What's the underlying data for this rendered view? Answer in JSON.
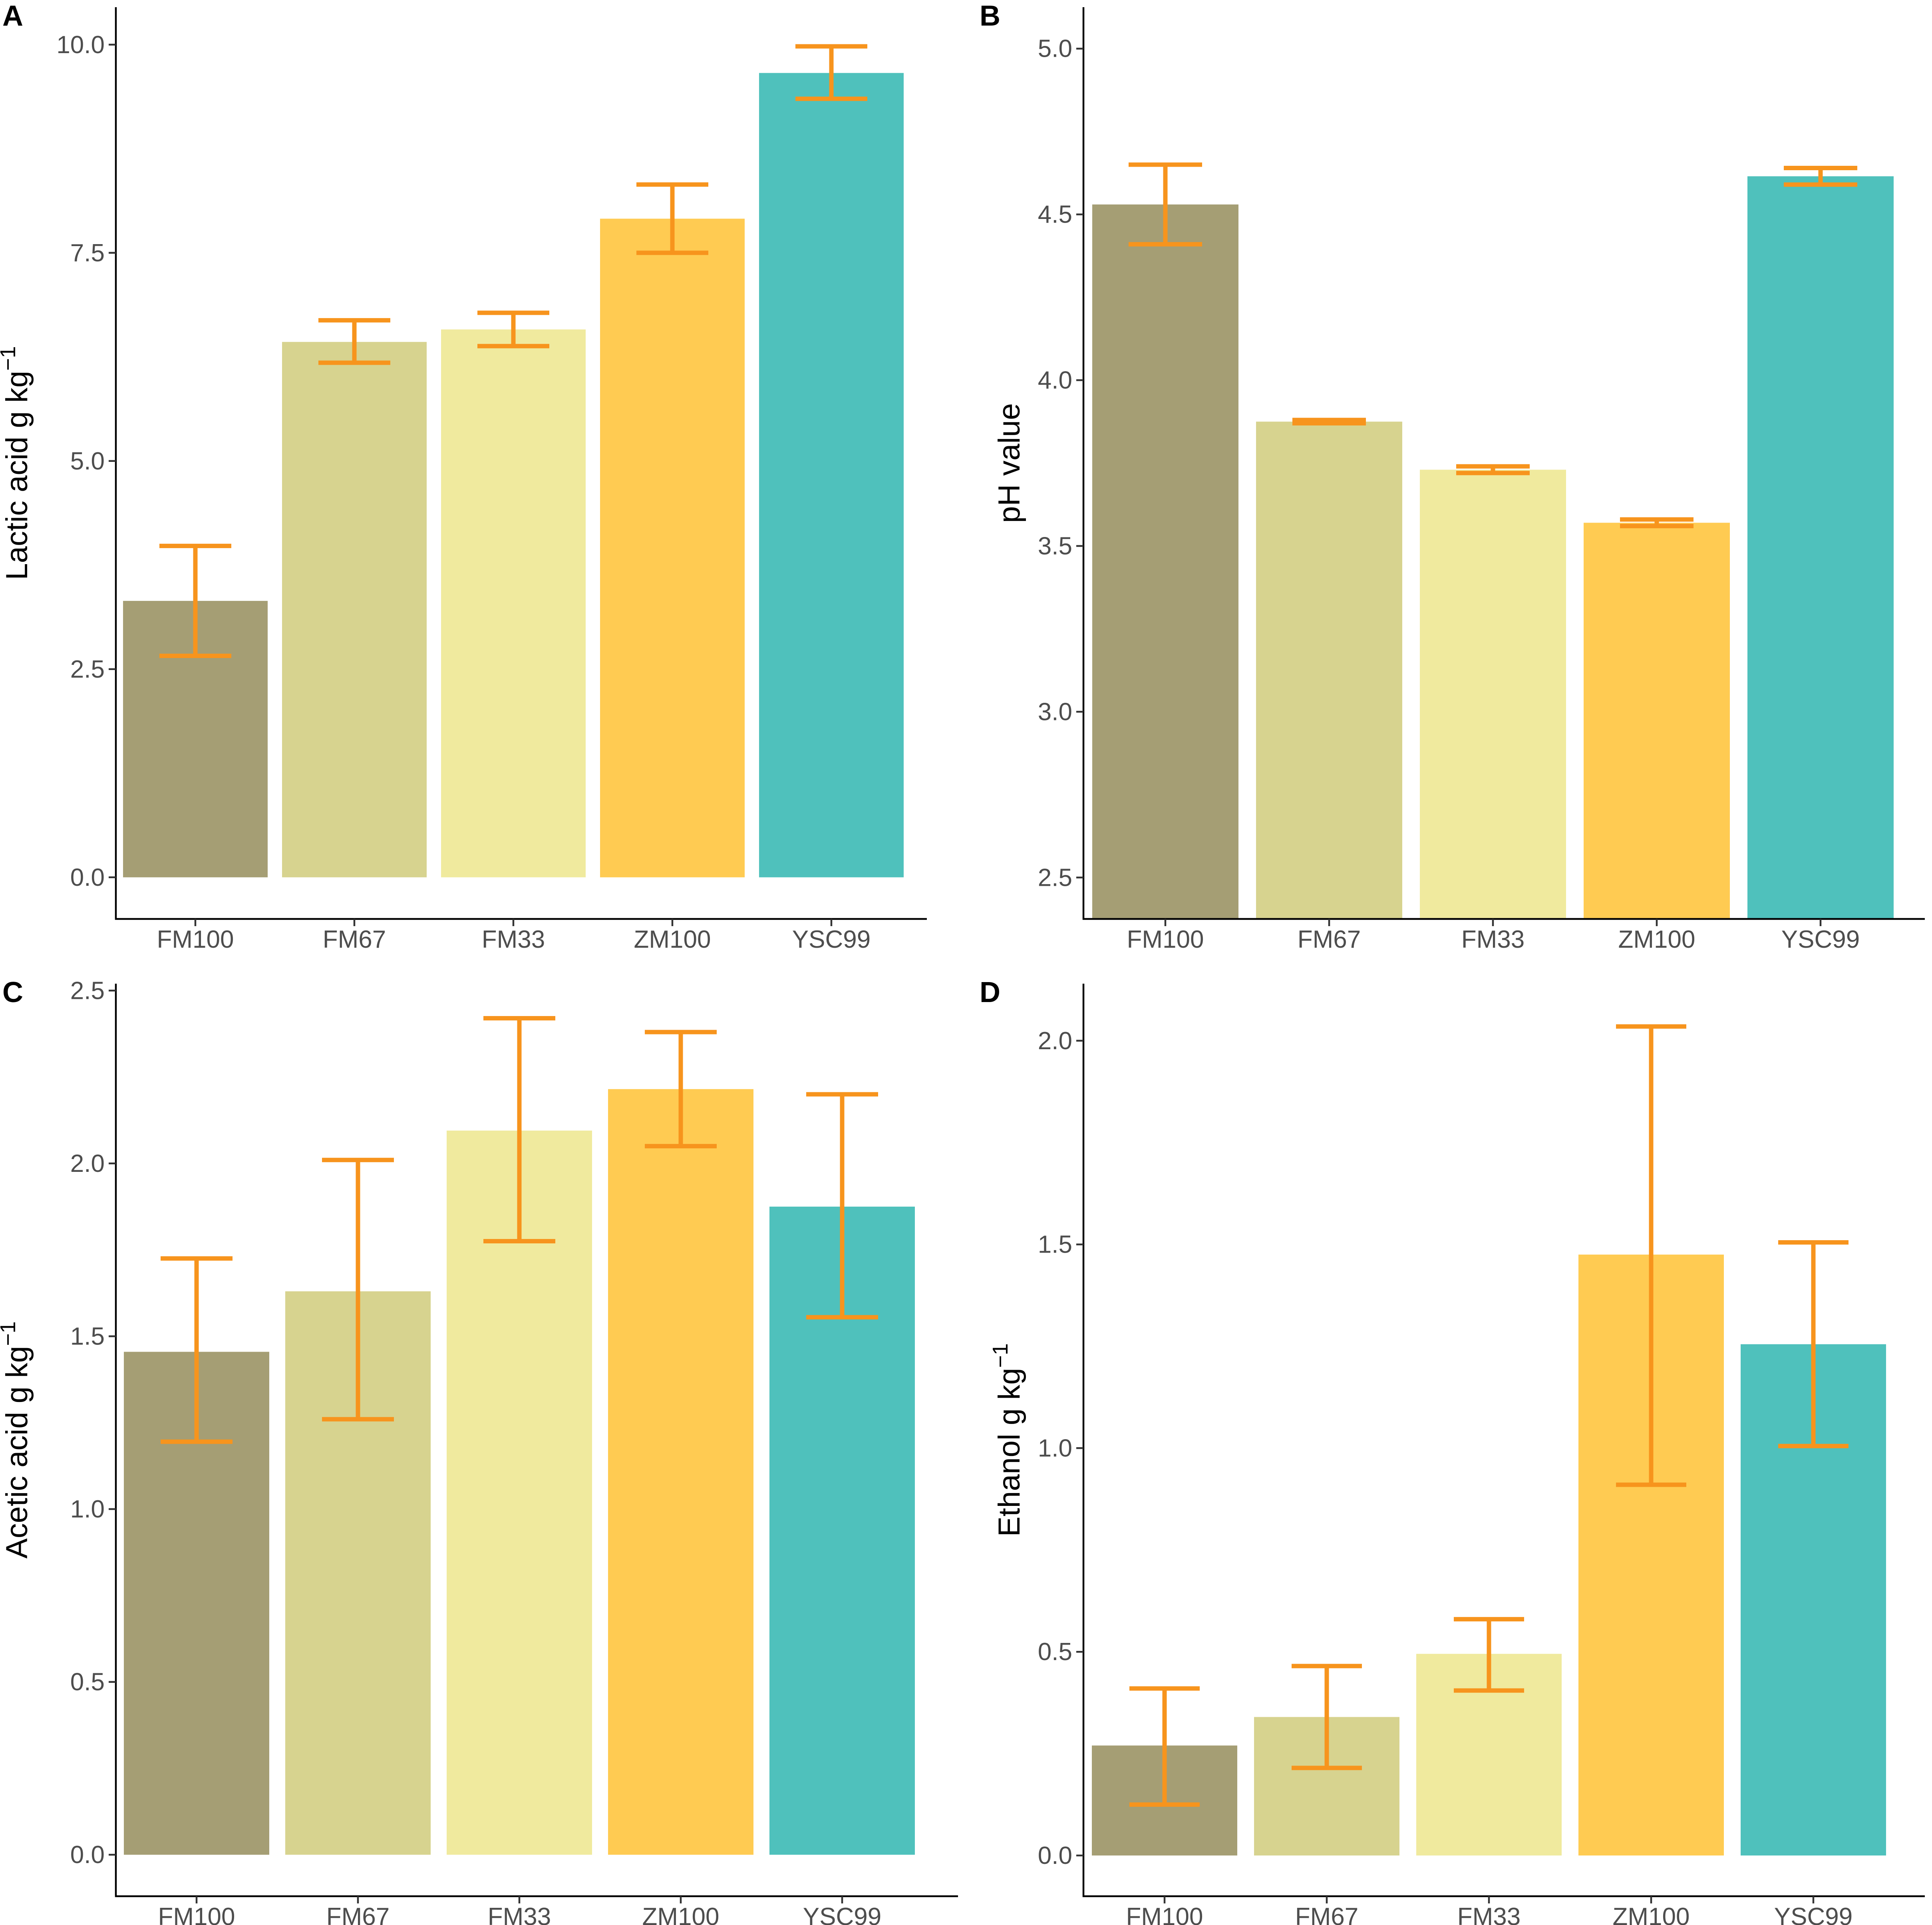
{
  "colors": {
    "FM100": "#A59E74",
    "FM67": "#D7D38F",
    "FM33": "#F0EA9E",
    "ZM100": "#FFCB52",
    "YSC99": "#4FC1BC",
    "error": "#F7941D"
  },
  "chart_data": [
    {
      "panel": "A",
      "type": "bar",
      "categories": [
        "FM100",
        "FM67",
        "FM33",
        "ZM100",
        "YSC99"
      ],
      "values": [
        3.32,
        6.43,
        6.58,
        7.91,
        9.66
      ],
      "err_low": [
        2.66,
        6.18,
        6.38,
        7.5,
        9.35
      ],
      "err_high": [
        3.98,
        6.69,
        6.78,
        8.32,
        9.98
      ],
      "ylabel_main": "Lactic acid g  kg",
      "ylabel_sup": "−1",
      "ylim": [
        -0.5,
        10.45
      ],
      "yticks": [
        0.0,
        2.5,
        5.0,
        7.5,
        10.0
      ],
      "ytick_labels": [
        "0.0",
        "2.5",
        "5.0",
        "7.5",
        "10.0"
      ],
      "bar_base": 0
    },
    {
      "panel": "B",
      "type": "bar",
      "categories": [
        "FM100",
        "FM67",
        "FM33",
        "ZM100",
        "YSC99"
      ],
      "values": [
        4.53,
        3.875,
        3.73,
        3.57,
        4.615
      ],
      "err_low": [
        4.41,
        3.87,
        3.72,
        3.56,
        4.59
      ],
      "err_high": [
        4.65,
        3.88,
        3.74,
        3.58,
        4.64
      ],
      "ylabel_main": "pH value",
      "ylabel_sup": "",
      "ylim": [
        2.375,
        5.125
      ],
      "yticks": [
        2.5,
        3.0,
        3.5,
        4.0,
        4.5,
        5.0
      ],
      "ytick_labels": [
        "2.5",
        "3.0",
        "3.5",
        "4.0",
        "4.5",
        "5.0"
      ],
      "bar_base": 2.375
    },
    {
      "panel": "C",
      "type": "bar",
      "categories": [
        "FM100",
        "FM67",
        "FM33",
        "ZM100",
        "YSC99"
      ],
      "values": [
        1.455,
        1.63,
        2.095,
        2.215,
        1.875
      ],
      "err_low": [
        1.195,
        1.26,
        1.775,
        2.05,
        1.555
      ],
      "err_high": [
        1.725,
        2.01,
        2.42,
        2.38,
        2.2
      ],
      "ylabel_main": "Acetic acid g  kg",
      "ylabel_sup": "−1",
      "ylim": [
        -0.12,
        2.52
      ],
      "yticks": [
        0.0,
        0.5,
        1.0,
        1.5,
        2.0,
        2.5
      ],
      "ytick_labels": [
        "0.0",
        "0.5",
        "1.0",
        "1.5",
        "2.0",
        "2.5"
      ],
      "bar_base": 0
    },
    {
      "panel": "D",
      "type": "bar",
      "categories": [
        "FM100",
        "FM67",
        "FM33",
        "ZM100",
        "YSC99"
      ],
      "values": [
        0.27,
        0.34,
        0.495,
        1.475,
        1.255
      ],
      "err_low": [
        0.125,
        0.215,
        0.405,
        0.91,
        1.005
      ],
      "err_high": [
        0.41,
        0.465,
        0.58,
        2.035,
        1.505
      ],
      "ylabel_main": "Ethanol g  kg",
      "ylabel_sup": "−1",
      "ylim": [
        -0.1,
        2.14
      ],
      "yticks": [
        0.0,
        0.5,
        1.0,
        1.5,
        2.0
      ],
      "ytick_labels": [
        "0.0",
        "0.5",
        "1.0",
        "1.5",
        "2.0"
      ],
      "bar_base": 0
    }
  ]
}
